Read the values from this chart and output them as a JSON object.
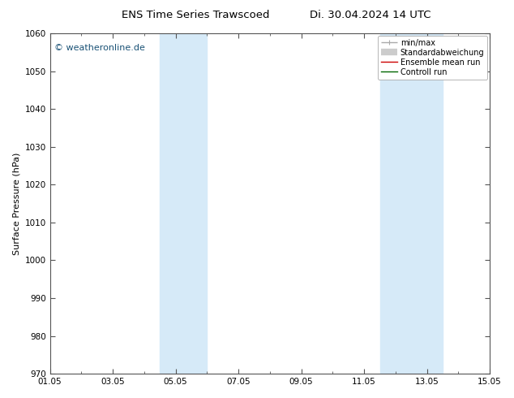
{
  "title_left": "ENS Time Series Trawscoed",
  "title_right": "Di. 30.04.2024 14 UTC",
  "ylabel": "Surface Pressure (hPa)",
  "ylim": [
    970,
    1060
  ],
  "yticks": [
    970,
    980,
    990,
    1000,
    1010,
    1020,
    1030,
    1040,
    1050,
    1060
  ],
  "xlim_start": 0,
  "xlim_end": 14,
  "xtick_positions": [
    0,
    2,
    4,
    6,
    8,
    10,
    12,
    14
  ],
  "xtick_labels": [
    "01.05",
    "03.05",
    "05.05",
    "07.05",
    "09.05",
    "11.05",
    "13.05",
    "15.05"
  ],
  "shade_bands": [
    {
      "xmin": 3.5,
      "xmax": 5.0,
      "color": "#d6eaf8"
    },
    {
      "xmin": 10.5,
      "xmax": 12.5,
      "color": "#d6eaf8"
    }
  ],
  "watermark": "© weatheronline.de",
  "watermark_color": "#1a5276",
  "legend_labels": [
    "min/max",
    "Standardabweichung",
    "Ensemble mean run",
    "Controll run"
  ],
  "legend_colors": [
    "#aaaaaa",
    "#cccccc",
    "#cc0000",
    "#006600"
  ],
  "background_color": "#ffffff",
  "plot_bg_color": "#ffffff",
  "spine_color": "#555555",
  "tick_color": "#555555",
  "title_fontsize": 9.5,
  "label_fontsize": 8,
  "tick_fontsize": 7.5,
  "legend_fontsize": 7
}
